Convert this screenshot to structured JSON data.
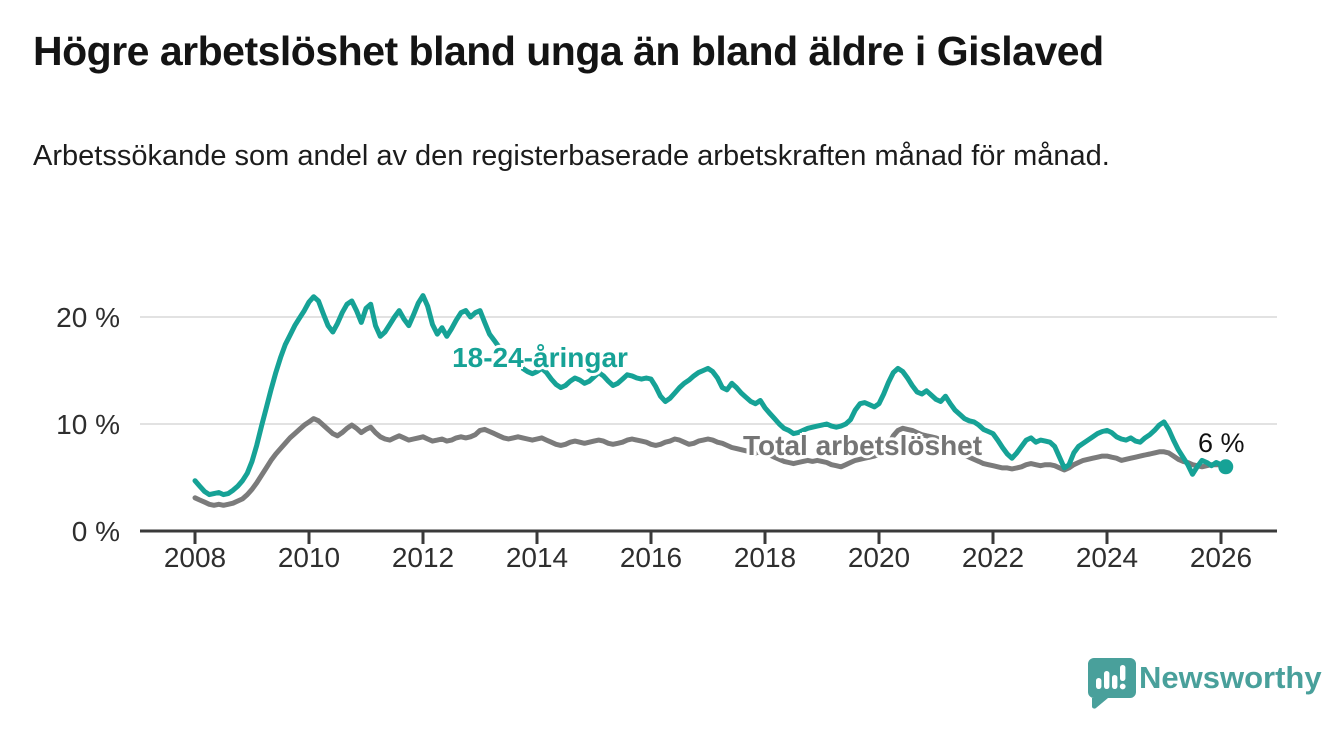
{
  "header": {
    "title": "Högre arbetslöshet bland unga än bland äldre i Gislaved",
    "subtitle": "Arbetssökande som andel av den registerbaserade arbetskraften månad för månad."
  },
  "annotations": {
    "youth_series_label": "18-24-åringar",
    "total_series_label": "Total arbetslöshet",
    "end_value_label": "6 %"
  },
  "footer": {
    "brand_name": "Newsworthy",
    "logo_icon": "bar-chart-speech-bubble-icon",
    "brand_color": "#49a09b"
  },
  "colors": {
    "youth_line": "#16a296",
    "total_line": "#7b7b7b",
    "gridline": "#d8d8d8",
    "axis": "#3a3a3a",
    "text": "#2e2e2e"
  },
  "chart_data": {
    "type": "line",
    "title": "Högre arbetslöshet bland unga än bland äldre i Gislaved",
    "subtitle": "Arbetssökande som andel av den registerbaserade arbetskraften månad för månad.",
    "unit": "%",
    "grid": "horizontal-only",
    "legend_position": "inline-labels",
    "x_axis": {
      "ticks": [
        2008,
        2010,
        2012,
        2014,
        2016,
        2018,
        2020,
        2022,
        2024,
        2026
      ],
      "tick_labels": [
        "2008",
        "2010",
        "2012",
        "2014",
        "2016",
        "2018",
        "2020",
        "2022",
        "2024",
        "2026"
      ],
      "xlim": [
        2007.0,
        2027.0
      ]
    },
    "y_axis": {
      "ticks": [
        0,
        10,
        20
      ],
      "tick_labels": [
        "0 %",
        "10 %",
        "20 %"
      ],
      "ylim": [
        0,
        23.5
      ]
    },
    "series": [
      {
        "name": "18-24-åringar",
        "color": "#16a296",
        "start_year": 2008,
        "interval_months": 1,
        "end_dot": true,
        "end_label": "6 %",
        "values": [
          4.7,
          4.2,
          3.7,
          3.4,
          3.5,
          3.6,
          3.4,
          3.5,
          3.8,
          4.2,
          4.7,
          5.4,
          6.5,
          8.0,
          9.8,
          11.5,
          13.2,
          14.8,
          16.2,
          17.4,
          18.3,
          19.2,
          19.9,
          20.6,
          21.4,
          21.9,
          21.5,
          20.3,
          19.2,
          18.6,
          19.4,
          20.4,
          21.2,
          21.5,
          20.6,
          19.5,
          20.8,
          21.2,
          19.2,
          18.2,
          18.6,
          19.3,
          20.0,
          20.6,
          19.8,
          19.2,
          20.2,
          21.3,
          22.0,
          21.0,
          19.3,
          18.4,
          19.0,
          18.2,
          18.9,
          19.7,
          20.4,
          20.6,
          20.0,
          20.4,
          20.6,
          19.5,
          18.4,
          17.8,
          17.2,
          16.6,
          16.2,
          15.9,
          15.5,
          15.2,
          14.9,
          14.7,
          14.9,
          15.2,
          14.8,
          14.2,
          13.7,
          13.4,
          13.6,
          14.0,
          14.3,
          14.1,
          13.8,
          14.0,
          14.4,
          14.8,
          14.5,
          14.0,
          13.6,
          13.8,
          14.2,
          14.6,
          14.5,
          14.3,
          14.2,
          14.3,
          14.2,
          13.5,
          12.6,
          12.1,
          12.4,
          12.9,
          13.4,
          13.8,
          14.1,
          14.5,
          14.8,
          15.0,
          15.2,
          14.9,
          14.3,
          13.4,
          13.2,
          13.8,
          13.4,
          12.9,
          12.5,
          12.1,
          11.9,
          12.2,
          11.5,
          11.0,
          10.5,
          10.0,
          9.6,
          9.4,
          9.1,
          9.2,
          9.4,
          9.6,
          9.7,
          9.8,
          9.9,
          10.0,
          9.8,
          9.7,
          9.8,
          10.0,
          10.4,
          11.3,
          11.9,
          12.0,
          11.8,
          11.6,
          11.9,
          12.8,
          13.9,
          14.8,
          15.2,
          14.9,
          14.3,
          13.6,
          13.0,
          12.8,
          13.1,
          12.7,
          12.3,
          12.1,
          12.6,
          11.9,
          11.3,
          10.9,
          10.5,
          10.3,
          10.2,
          9.9,
          9.5,
          9.3,
          9.1,
          8.5,
          7.8,
          7.2,
          6.8,
          7.3,
          7.9,
          8.5,
          8.7,
          8.3,
          8.5,
          8.4,
          8.3,
          7.9,
          6.9,
          5.9,
          6.2,
          7.3,
          7.9,
          8.2,
          8.5,
          8.8,
          9.1,
          9.3,
          9.4,
          9.2,
          8.8,
          8.6,
          8.5,
          8.7,
          8.4,
          8.3,
          8.7,
          9.0,
          9.4,
          9.9,
          10.2,
          9.5,
          8.5,
          7.6,
          6.9,
          6.2,
          5.3,
          6.0,
          6.6,
          6.4,
          6.1,
          6.4,
          6.2,
          6.0
        ]
      },
      {
        "name": "Total arbetslöshet",
        "color": "#7b7b7b",
        "start_year": 2008,
        "interval_months": 1,
        "end_dot": false,
        "values": [
          3.1,
          2.9,
          2.7,
          2.5,
          2.4,
          2.5,
          2.4,
          2.5,
          2.6,
          2.8,
          3.0,
          3.4,
          3.9,
          4.5,
          5.2,
          5.9,
          6.6,
          7.2,
          7.7,
          8.2,
          8.7,
          9.1,
          9.5,
          9.9,
          10.2,
          10.5,
          10.3,
          9.9,
          9.5,
          9.1,
          8.9,
          9.2,
          9.6,
          9.9,
          9.6,
          9.2,
          9.5,
          9.7,
          9.2,
          8.8,
          8.6,
          8.5,
          8.7,
          8.9,
          8.7,
          8.5,
          8.6,
          8.7,
          8.8,
          8.6,
          8.4,
          8.5,
          8.6,
          8.4,
          8.5,
          8.7,
          8.8,
          8.7,
          8.8,
          9.0,
          9.4,
          9.5,
          9.3,
          9.1,
          8.9,
          8.7,
          8.6,
          8.7,
          8.8,
          8.7,
          8.6,
          8.5,
          8.6,
          8.7,
          8.5,
          8.3,
          8.1,
          8.0,
          8.1,
          8.3,
          8.4,
          8.3,
          8.2,
          8.3,
          8.4,
          8.5,
          8.4,
          8.2,
          8.1,
          8.2,
          8.3,
          8.5,
          8.6,
          8.5,
          8.4,
          8.3,
          8.1,
          8.0,
          8.1,
          8.3,
          8.4,
          8.6,
          8.5,
          8.3,
          8.1,
          8.2,
          8.4,
          8.5,
          8.6,
          8.5,
          8.3,
          8.2,
          8.0,
          7.8,
          7.7,
          7.6,
          7.5,
          7.4,
          7.3,
          7.4,
          7.3,
          7.1,
          6.9,
          6.7,
          6.5,
          6.4,
          6.3,
          6.4,
          6.5,
          6.6,
          6.5,
          6.6,
          6.5,
          6.4,
          6.2,
          6.1,
          6.0,
          6.2,
          6.4,
          6.6,
          6.7,
          6.8,
          6.9,
          7.0,
          7.2,
          7.5,
          8.1,
          8.9,
          9.4,
          9.6,
          9.5,
          9.4,
          9.2,
          9.0,
          8.9,
          8.8,
          8.7,
          8.5,
          8.2,
          7.9,
          7.6,
          7.3,
          7.1,
          6.9,
          6.7,
          6.5,
          6.3,
          6.2,
          6.1,
          6.0,
          5.9,
          5.9,
          5.8,
          5.9,
          6.0,
          6.2,
          6.3,
          6.2,
          6.1,
          6.2,
          6.2,
          6.1,
          5.9,
          5.7,
          5.9,
          6.2,
          6.4,
          6.6,
          6.7,
          6.8,
          6.9,
          7.0,
          7.0,
          6.9,
          6.8,
          6.6,
          6.7,
          6.8,
          6.9,
          7.0,
          7.1,
          7.2,
          7.3,
          7.4,
          7.4,
          7.3,
          7.0,
          6.7,
          6.5,
          6.4,
          6.2,
          6.1,
          6.0,
          6.1,
          6.2,
          6.2,
          6.2
        ]
      }
    ]
  }
}
